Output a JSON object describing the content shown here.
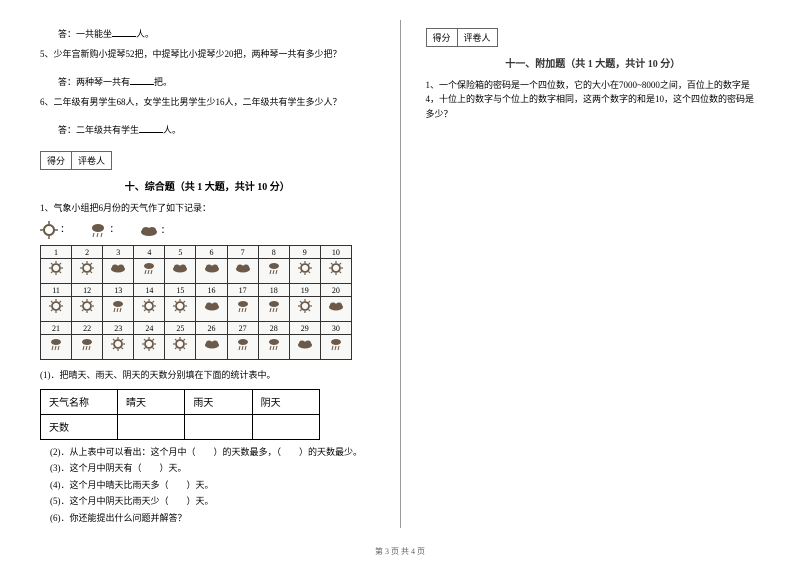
{
  "left": {
    "q4_ans": "答：一共能坐____人。",
    "q5": "5、少年宫新购小提琴52把，中提琴比小提琴少20把，两种琴一共有多少把？",
    "q5_ans": "答：两种琴一共有____把。",
    "q6": "6、二年级有男学生68人，女学生比男学生少16人，二年级共有学生多少人？",
    "q6_ans": "答：二年级共有学生____人。",
    "score_label1": "得分",
    "score_label2": "评卷人",
    "section10_title": "十、综合题（共 1 大题，共计 10 分）",
    "s10_q1": "1、气象小组把6月份的天气作了如下记录：",
    "legend_sunny": "：",
    "legend_rainy": "：",
    "legend_cloudy": "：",
    "calendar_days": [
      [
        1,
        2,
        3,
        4,
        5,
        6,
        7,
        8,
        9,
        10
      ],
      [
        11,
        12,
        13,
        14,
        15,
        16,
        17,
        18,
        19,
        20
      ],
      [
        21,
        22,
        23,
        24,
        25,
        26,
        27,
        28,
        29,
        30
      ]
    ],
    "calendar_weather": [
      [
        "s",
        "s",
        "c",
        "r",
        "c",
        "c",
        "c",
        "r",
        "s",
        "s"
      ],
      [
        "s",
        "s",
        "r",
        "s",
        "s",
        "c",
        "r",
        "r",
        "s",
        "c"
      ],
      [
        "r",
        "r",
        "s",
        "s",
        "s",
        "c",
        "r",
        "r",
        "c",
        "r"
      ]
    ],
    "sub1": "(1)．把晴天、雨天、阴天的天数分别填在下面的统计表中。",
    "table_header": [
      "天气名称",
      "晴天",
      "雨天",
      "阴天"
    ],
    "table_row": "天数",
    "sub2": "(2)．从上表中可以看出：这个月中（　　）的天数最多，（　　）的天数最少。",
    "sub3": "(3)．这个月中阴天有（　　）天。",
    "sub4": "(4)．这个月中晴天比雨天多（　　）天。",
    "sub5": "(5)．这个月中阴天比雨天少（　　）天。",
    "sub6": "(6)．你还能提出什么问题并解答？"
  },
  "right": {
    "score_label1": "得分",
    "score_label2": "评卷人",
    "section11_title": "十一、附加题（共 1 大题，共计 10 分）",
    "s11_q1": "1、一个保险箱的密码是一个四位数，它的大小在7000~8000之间，百位上的数字是4，十位上的数字与个位上的数字相同，这两个数字的和是10，这个四位数的密码是多少？"
  },
  "footer": "第 3 页 共 4 页",
  "colors": {
    "icon": "#6b5a4a",
    "border": "#333333"
  }
}
